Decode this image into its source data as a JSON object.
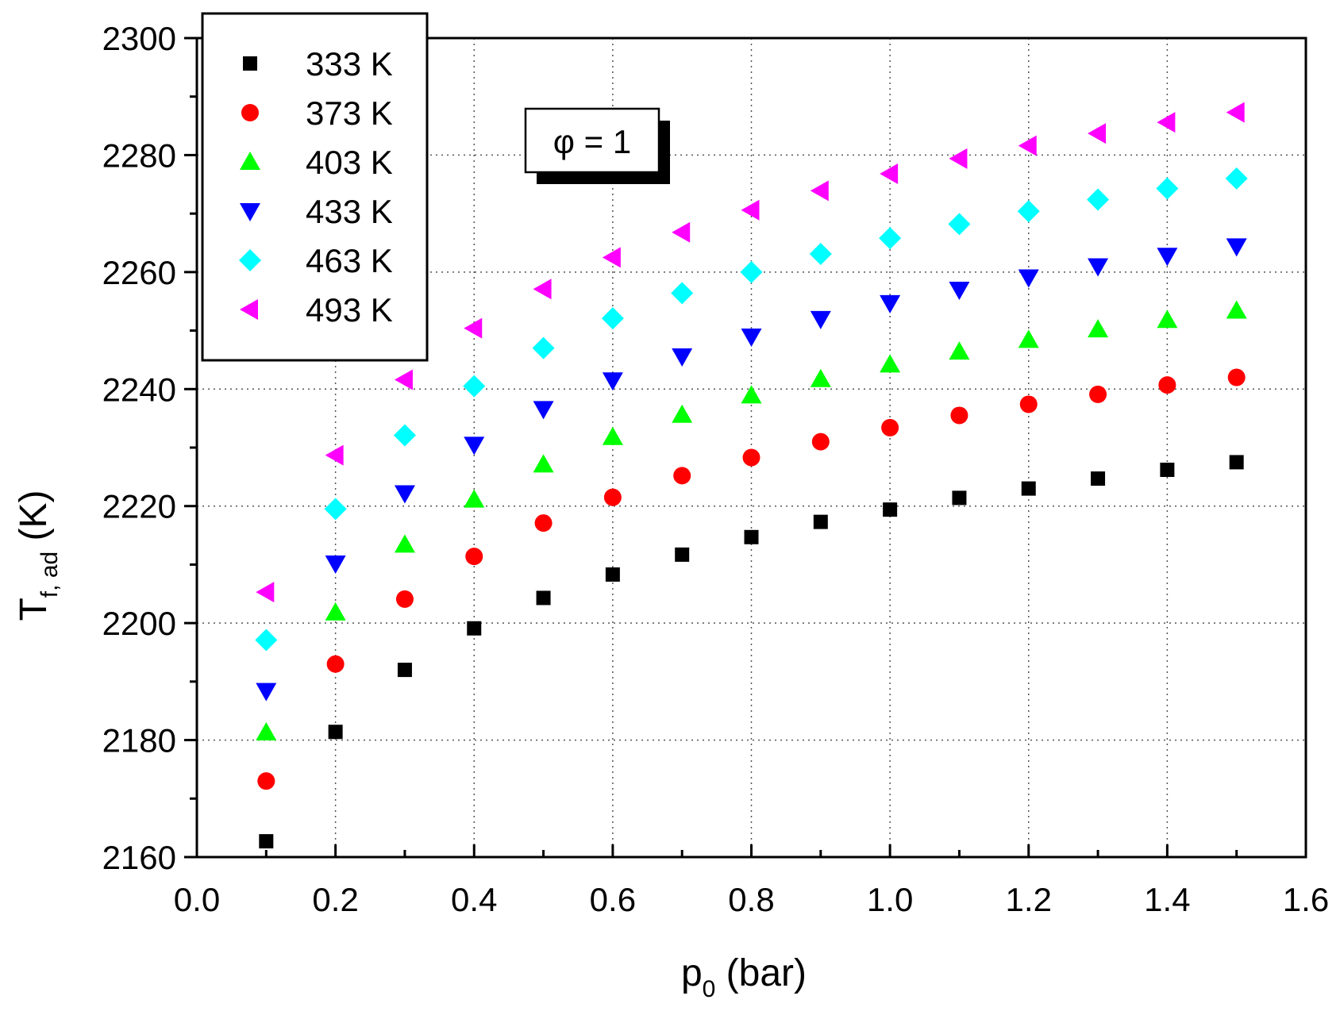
{
  "chart_data": {
    "type": "scatter",
    "title": "",
    "xlabel": {
      "main": "p",
      "sub": "0",
      "rest": " (bar)"
    },
    "ylabel": {
      "main": "T",
      "sub": "f, ad",
      "rest": " (K)"
    },
    "xlim": [
      0.0,
      1.6
    ],
    "ylim": [
      2160,
      2300
    ],
    "xticks": [
      "0.0",
      "0.2",
      "0.4",
      "0.6",
      "0.8",
      "1.0",
      "1.2",
      "1.4",
      "1.6"
    ],
    "yticks": [
      "2160",
      "2180",
      "2200",
      "2220",
      "2240",
      "2260",
      "2280",
      "2300"
    ],
    "grid": true,
    "legend_position": "top-left",
    "annotation": "φ = 1",
    "x": [
      0.1,
      0.2,
      0.3,
      0.4,
      0.5,
      0.6,
      0.7,
      0.8,
      0.9,
      1.0,
      1.1,
      1.2,
      1.3,
      1.4,
      1.5
    ],
    "series": [
      {
        "name": "333 K",
        "marker": "square",
        "color": "#000000",
        "values": [
          2162.7,
          2181.4,
          2192.0,
          2199.1,
          2204.3,
          2208.3,
          2211.7,
          2214.7,
          2217.3,
          2219.4,
          2221.4,
          2223.0,
          2224.7,
          2226.2,
          2227.5
        ]
      },
      {
        "name": "373 K",
        "marker": "circle",
        "color": "#ff0000",
        "values": [
          2173.0,
          2193.0,
          2204.1,
          2211.4,
          2217.1,
          2221.5,
          2225.2,
          2228.3,
          2231.0,
          2233.4,
          2235.5,
          2237.4,
          2239.1,
          2240.7,
          2242.0
        ]
      },
      {
        "name": "403 K",
        "marker": "triangle-up",
        "color": "#00ff00",
        "values": [
          2181.3,
          2201.8,
          2213.4,
          2221.1,
          2227.1,
          2231.8,
          2235.6,
          2238.9,
          2241.7,
          2244.2,
          2246.4,
          2248.4,
          2250.2,
          2251.8,
          2253.4
        ]
      },
      {
        "name": "433 K",
        "marker": "triangle-down",
        "color": "#0000ff",
        "values": [
          2188.4,
          2210.2,
          2222.2,
          2230.5,
          2236.6,
          2241.5,
          2245.6,
          2249.0,
          2252.0,
          2254.7,
          2257.0,
          2259.1,
          2261.0,
          2262.8,
          2264.4
        ]
      },
      {
        "name": "463 K",
        "marker": "diamond",
        "color": "#00ffff",
        "values": [
          2197.1,
          2219.5,
          2232.1,
          2240.5,
          2247.0,
          2252.1,
          2256.4,
          2260.0,
          2263.1,
          2265.8,
          2268.2,
          2270.4,
          2272.4,
          2274.3,
          2276.0
        ]
      },
      {
        "name": "493 K",
        "marker": "triangle-left",
        "color": "#ff00ff",
        "values": [
          2205.3,
          2228.7,
          2241.6,
          2250.4,
          2257.1,
          2262.5,
          2266.8,
          2270.6,
          2273.9,
          2276.8,
          2279.4,
          2281.6,
          2283.7,
          2285.6,
          2287.3
        ]
      }
    ]
  }
}
